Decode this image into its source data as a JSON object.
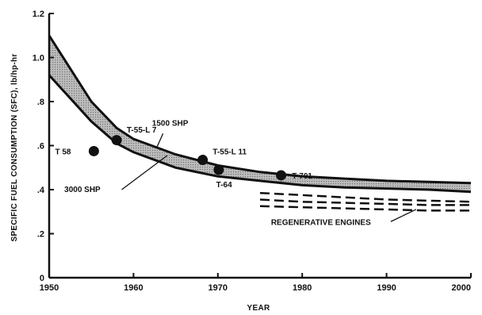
{
  "chart_data": {
    "type": "line",
    "title": "",
    "xlabel": "YEAR",
    "ylabel": "SPECIFIC FUEL CONSUMPTION (SFC), lb/hp-hr",
    "xlim": [
      1950,
      2000
    ],
    "ylim": [
      0,
      1.2
    ],
    "xticks": [
      1950,
      1960,
      1970,
      1980,
      1990,
      2000
    ],
    "xtick_labels": [
      "1950",
      "1960",
      "1970",
      "1980",
      "1990",
      "2000"
    ],
    "yticks": [
      0,
      0.2,
      0.4,
      0.6,
      0.8,
      1.0,
      1.2
    ],
    "ytick_labels": [
      "0",
      ".2",
      ".4",
      ".6",
      ".8",
      "1.0",
      "1.2"
    ],
    "grid": false,
    "band": {
      "x": [
        1950,
        1955,
        1958,
        1960,
        1965,
        1970,
        1975,
        1980,
        1985,
        1990,
        1995,
        2000
      ],
      "upper": [
        1.1,
        0.8,
        0.68,
        0.63,
        0.56,
        0.51,
        0.48,
        0.46,
        0.45,
        0.44,
        0.435,
        0.43
      ],
      "lower": [
        0.92,
        0.71,
        0.61,
        0.57,
        0.5,
        0.46,
        0.44,
        0.42,
        0.41,
        0.405,
        0.4,
        0.39
      ]
    },
    "band_labels": [
      {
        "text": "1500 SHP",
        "x": 1962.2,
        "y": 0.69,
        "leader_from": [
          1963.5,
          0.655
        ],
        "leader_to": [
          1962.8,
          0.595
        ]
      },
      {
        "text": "3000 SHP",
        "x": 1951.8,
        "y": 0.39,
        "leader_from": [
          1958.6,
          0.4
        ],
        "leader_to": [
          1964.0,
          0.555
        ]
      }
    ],
    "points": [
      {
        "label": "T 58",
        "x": 1955.3,
        "y": 0.575,
        "label_x": 1950.7,
        "label_y": 0.56
      },
      {
        "label": "T-55-L 7",
        "x": 1958.0,
        "y": 0.625,
        "label_x": 1959.2,
        "label_y": 0.66
      },
      {
        "label": "T-55-L 11",
        "x": 1968.2,
        "y": 0.535,
        "label_x": 1969.4,
        "label_y": 0.56
      },
      {
        "label": "T-64",
        "x": 1970.1,
        "y": 0.49,
        "label_x": 1969.8,
        "label_y": 0.41
      },
      {
        "label": "T-701",
        "x": 1977.5,
        "y": 0.465,
        "label_x": 1978.8,
        "label_y": 0.45
      }
    ],
    "series": [
      {
        "name": "",
        "style": "dashed",
        "x": [
          1975,
          1980,
          1985,
          1990,
          1995,
          2000
        ],
        "y": [
          0.385,
          0.375,
          0.365,
          0.355,
          0.35,
          0.345
        ]
      },
      {
        "name": "",
        "style": "dashed",
        "x": [
          1975,
          1980,
          1985,
          1990,
          1995,
          2000
        ],
        "y": [
          0.355,
          0.345,
          0.34,
          0.335,
          0.33,
          0.33
        ]
      },
      {
        "name": "",
        "style": "dashed",
        "x": [
          1975,
          1980,
          1985,
          1990,
          1995,
          2000
        ],
        "y": [
          0.325,
          0.32,
          0.315,
          0.31,
          0.305,
          0.305
        ]
      }
    ],
    "annotations": [
      {
        "text": "REGENERATIVE ENGINES",
        "x": 1976.3,
        "y": 0.24,
        "leader_from": [
          1990.5,
          0.255
        ],
        "leader_to": [
          1993.5,
          0.31
        ]
      }
    ]
  }
}
